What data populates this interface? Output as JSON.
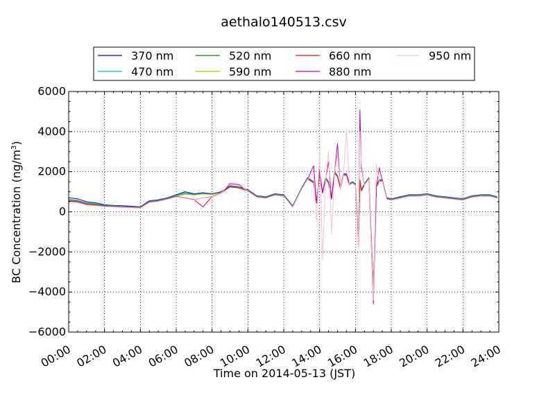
{
  "chart_data": {
    "type": "line",
    "title": "aethalo140513.csv",
    "xlabel": "Time on 2014-05-13 (JST)",
    "ylabel_main": "BC Concentration (ng/m",
    "ylabel_sup": "3",
    "ylabel_close": ")",
    "xlim": [
      "00:00",
      "24:00"
    ],
    "ylim": [
      -6000,
      6000
    ],
    "x_ticks": [
      "00:00",
      "02:00",
      "04:00",
      "06:00",
      "08:00",
      "10:00",
      "12:00",
      "14:00",
      "16:00",
      "18:00",
      "20:00",
      "22:00",
      "24:00"
    ],
    "y_ticks": [
      "−6000",
      "−4000",
      "−2000",
      "0",
      "2000",
      "4000",
      "6000"
    ],
    "grid": true,
    "legend_position": "top-center",
    "x": [
      "00:00",
      "00:30",
      "01:00",
      "01:30",
      "02:00",
      "02:30",
      "03:00",
      "03:30",
      "04:00",
      "04:30",
      "05:00",
      "05:30",
      "06:00",
      "06:30",
      "07:00",
      "07:30",
      "08:00",
      "08:30",
      "09:00",
      "09:30",
      "10:00",
      "10:30",
      "11:00",
      "11:30",
      "12:00",
      "12:30",
      "13:00",
      "13:20",
      "13:40",
      "13:50",
      "14:00",
      "14:10",
      "14:20",
      "14:30",
      "14:40",
      "14:50",
      "15:00",
      "15:10",
      "15:20",
      "15:30",
      "15:40",
      "15:50",
      "16:00",
      "16:10",
      "16:15",
      "16:20",
      "16:30",
      "16:45",
      "17:00",
      "17:10",
      "17:20",
      "17:30",
      "17:45",
      "18:00",
      "18:30",
      "19:00",
      "19:30",
      "20:00",
      "20:30",
      "21:00",
      "21:30",
      "22:00",
      "22:30",
      "23:00",
      "23:30",
      "23:55"
    ],
    "series": [
      {
        "name": "370 nm",
        "color": "#0000ff",
        "values": [
          700,
          650,
          500,
          450,
          350,
          320,
          300,
          280,
          250,
          550,
          600,
          700,
          850,
          1000,
          900,
          950,
          900,
          1000,
          1300,
          1250,
          1100,
          800,
          750,
          900,
          850,
          300,
          1200,
          1700,
          1500,
          500,
          1900,
          1000,
          1700,
          1500,
          700,
          2000,
          1800,
          1200,
          1900,
          1900,
          1400,
          1500,
          1400,
          -1500,
          1600,
          1100,
          1400,
          1700,
          -3800,
          1300,
          1600,
          1600,
          700,
          650,
          750,
          850,
          850,
          900,
          800,
          750,
          700,
          650,
          800,
          850,
          850,
          750
        ]
      },
      {
        "name": "470 nm",
        "color": "#00bfbf",
        "values": [
          620,
          580,
          450,
          400,
          320,
          300,
          270,
          250,
          230,
          520,
          580,
          680,
          820,
          950,
          870,
          920,
          880,
          980,
          1280,
          1230,
          1080,
          780,
          730,
          880,
          830,
          280,
          1180,
          1680,
          1480,
          480,
          1880,
          980,
          1680,
          1480,
          680,
          1980,
          1780,
          1180,
          1880,
          1880,
          1380,
          1480,
          1380,
          -1550,
          1580,
          1080,
          1380,
          1680,
          -3900,
          1280,
          1580,
          1580,
          680,
          630,
          730,
          830,
          830,
          880,
          780,
          730,
          680,
          630,
          780,
          830,
          830,
          730
        ]
      },
      {
        "name": "520 nm",
        "color": "#008000",
        "values": [
          580,
          540,
          420,
          380,
          300,
          280,
          260,
          240,
          220,
          500,
          560,
          660,
          780,
          900,
          850,
          900,
          870,
          960,
          1260,
          1210,
          1060,
          760,
          710,
          860,
          810,
          260,
          1160,
          1660,
          1460,
          460,
          1860,
          960,
          1660,
          1460,
          660,
          1960,
          1760,
          1160,
          1860,
          1860,
          1360,
          1460,
          1360,
          -1600,
          1560,
          1060,
          1360,
          1660,
          -3950,
          1260,
          1560,
          1560,
          660,
          610,
          710,
          810,
          810,
          860,
          760,
          710,
          660,
          610,
          760,
          810,
          810,
          710
        ]
      },
      {
        "name": "590 nm",
        "color": "#bfbf00",
        "values": [
          560,
          520,
          400,
          360,
          290,
          270,
          250,
          230,
          210,
          490,
          550,
          650,
          770,
          880,
          840,
          890,
          860,
          950,
          1250,
          1200,
          1050,
          750,
          700,
          850,
          800,
          250,
          1150,
          1650,
          1450,
          450,
          1850,
          950,
          1650,
          1450,
          650,
          1950,
          1750,
          1150,
          1850,
          1850,
          1350,
          1450,
          1350,
          -1650,
          1550,
          1050,
          1350,
          1650,
          -4000,
          1250,
          1550,
          1550,
          650,
          600,
          700,
          800,
          800,
          850,
          750,
          700,
          650,
          600,
          750,
          800,
          800,
          700
        ]
      },
      {
        "name": "660 nm",
        "color": "#ff0000",
        "values": [
          540,
          500,
          380,
          340,
          280,
          260,
          240,
          220,
          200,
          480,
          540,
          640,
          760,
          700,
          600,
          250,
          760,
          940,
          1240,
          1190,
          1040,
          740,
          690,
          840,
          790,
          240,
          1140,
          1640,
          1440,
          440,
          1840,
          940,
          1640,
          1440,
          640,
          1940,
          1740,
          1140,
          1840,
          1840,
          1340,
          1440,
          1340,
          -1700,
          1540,
          1040,
          1340,
          1640,
          -4200,
          1240,
          1540,
          1540,
          640,
          590,
          690,
          790,
          790,
          840,
          740,
          690,
          640,
          590,
          740,
          790,
          790,
          690
        ]
      },
      {
        "name": "880 nm",
        "color": "#bf00bf",
        "values": [
          520,
          480,
          360,
          320,
          270,
          250,
          230,
          210,
          190,
          470,
          530,
          630,
          750,
          690,
          590,
          700,
          750,
          930,
          1400,
          1350,
          1030,
          730,
          680,
          830,
          780,
          230,
          1130,
          1630,
          2300,
          430,
          2100,
          930,
          1630,
          2500,
          630,
          1930,
          3400,
          1130,
          1830,
          1830,
          1330,
          1430,
          1330,
          -1750,
          5100,
          2200,
          1330,
          1630,
          -4600,
          1230,
          2200,
          1530,
          630,
          580,
          680,
          780,
          780,
          830,
          730,
          680,
          630,
          580,
          730,
          780,
          780,
          680
        ]
      },
      {
        "name": "950 nm",
        "color": "#ffc0cb",
        "values": [
          500,
          460,
          340,
          300,
          260,
          240,
          220,
          200,
          180,
          460,
          520,
          620,
          740,
          680,
          580,
          690,
          740,
          920,
          1450,
          1400,
          1020,
          720,
          670,
          820,
          770,
          220,
          1120,
          1620,
          1900,
          -500,
          3000,
          -2400,
          1620,
          3000,
          -1100,
          1920,
          2900,
          1120,
          1820,
          4100,
          1320,
          1420,
          1320,
          -1800,
          4000,
          2400,
          1320,
          1620,
          -4400,
          2400,
          1500,
          1520,
          620,
          570,
          670,
          770,
          770,
          820,
          720,
          670,
          620,
          570,
          720,
          770,
          770,
          670
        ]
      }
    ]
  }
}
